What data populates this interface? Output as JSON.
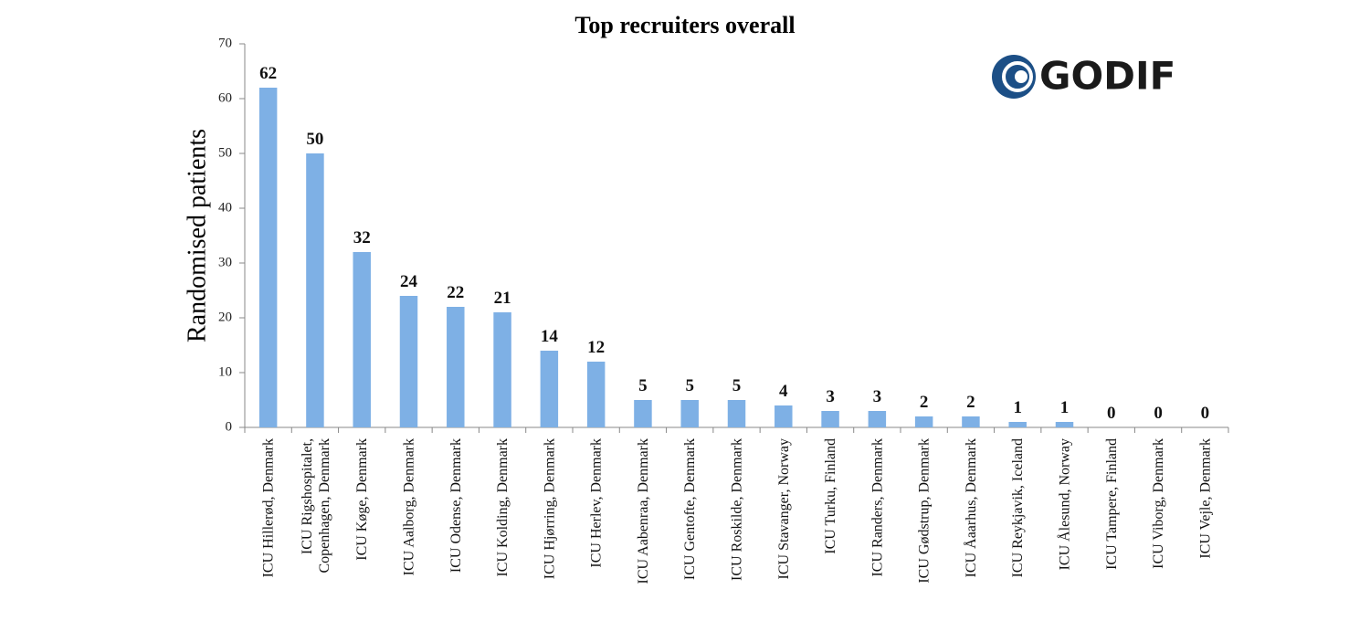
{
  "chart_data": {
    "type": "bar",
    "title": "Top recruiters overall",
    "logo": "GODIF",
    "y_label": "Randomised patients",
    "categories": [
      "ICU Hillerød, Denmark",
      "ICU Rigshospitalet,\nCopenhagen, Denmark",
      "ICU Køge, Denmark",
      "ICU Aalborg, Denmark",
      "ICU Odense, Denmark",
      "ICU Kolding, Denmark",
      "ICU Hjørring, Denmark",
      "ICU Herlev, Denmark",
      "ICU Aabenraa, Denmark",
      "ICU Gentofte, Denmark",
      "ICU Roskilde, Denmark",
      "ICU Stavanger, Norway",
      "ICU Turku, Finland",
      "ICU Randers, Denmark",
      "ICU Gødstrup, Denmark",
      "ICU Åaarhus, Denmark",
      "ICU Reykjavik, Iceland",
      "ICU Ålesund, Norway",
      "ICU Tampere, Finland",
      "ICU Viborg, Denmark",
      "ICU Vejle, Denmark"
    ],
    "values": [
      62,
      50,
      32,
      24,
      22,
      21,
      14,
      12,
      5,
      5,
      5,
      4,
      3,
      3,
      2,
      2,
      1,
      1,
      0,
      0,
      0
    ],
    "color": "#7eb0e5",
    "ylim": [
      0,
      70
    ],
    "yticks": [
      0,
      10,
      20,
      30,
      40,
      50,
      60,
      70
    ]
  }
}
